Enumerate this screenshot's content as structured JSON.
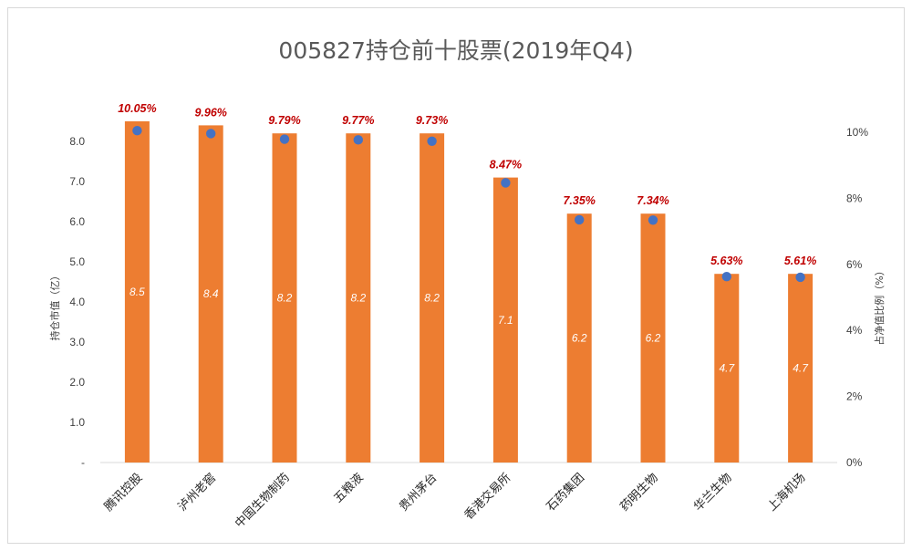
{
  "chart_data": {
    "type": "bar",
    "title": "005827持仓前十股票(2019年Q4)",
    "ylabel": "持仓市值（亿）",
    "y2label": "占净值比例（%）",
    "ylim": [
      0,
      8.2
    ],
    "y2lim": [
      0,
      10
    ],
    "y_ticks": [
      "-",
      "1.0",
      "2.0",
      "3.0",
      "4.0",
      "5.0",
      "6.0",
      "7.0",
      "8.0"
    ],
    "y2_ticks": [
      "0%",
      "2%",
      "4%",
      "6%",
      "8%",
      "10%"
    ],
    "categories": [
      "腾讯控股",
      "泸州老窖",
      "中国生物制药",
      "五粮液",
      "贵州茅台",
      "香港交易所",
      "石药集团",
      "药明生物",
      "华兰生物",
      "上海机场"
    ],
    "series": [
      {
        "type": "bar",
        "axis": "left",
        "color": "#ed7d31",
        "values": [
          8.5,
          8.4,
          8.2,
          8.2,
          8.2,
          7.1,
          6.2,
          6.2,
          4.7,
          4.7
        ],
        "labels": [
          "8.5",
          "8.4",
          "8.2",
          "8.2",
          "8.2",
          "7.1",
          "6.2",
          "6.2",
          "4.7",
          "4.7"
        ]
      },
      {
        "type": "scatter",
        "axis": "right",
        "color": "#4472c4",
        "values": [
          10.05,
          9.96,
          9.79,
          9.77,
          9.73,
          8.47,
          7.35,
          7.34,
          5.63,
          5.61
        ],
        "labels": [
          "10.05%",
          "9.96%",
          "9.79%",
          "9.77%",
          "9.73%",
          "8.47%",
          "7.35%",
          "7.34%",
          "5.63%",
          "5.61%"
        ]
      }
    ],
    "grid": false,
    "legend": "none"
  }
}
